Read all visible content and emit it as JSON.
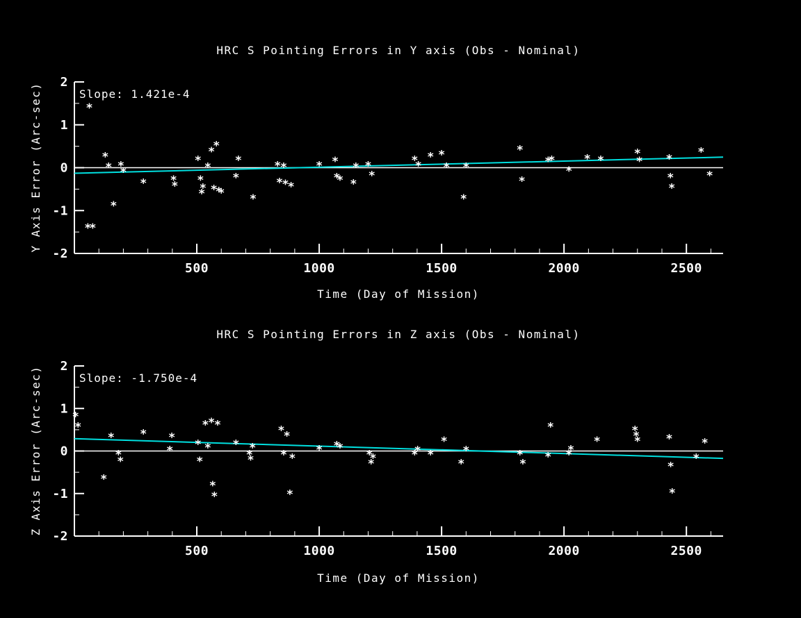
{
  "page": {
    "background": "#000000",
    "foreground": "#ffffff",
    "trend_color": "#00e0e0"
  },
  "chart_data": [
    {
      "type": "scatter",
      "title": "HRC S Pointing Errors in Y axis (Obs - Nominal)",
      "xlabel": "Time (Day of Mission)",
      "ylabel": "Y Axis Error (Arc-sec)",
      "annotation": "Slope: 1.421e-4",
      "marker": "*",
      "xlim": [
        0,
        2650
      ],
      "ylim": [
        -2,
        2
      ],
      "xticks": [
        500,
        1000,
        1500,
        2000,
        2500
      ],
      "yticks": [
        -2,
        -1,
        0,
        1,
        2
      ],
      "zero_line": true,
      "legend": "none",
      "grid": false,
      "trend": {
        "slope": 0.0001421,
        "intercept": -0.13
      },
      "points": [
        [
          61,
          1.4
        ],
        [
          55,
          -1.4
        ],
        [
          75,
          -1.4
        ],
        [
          126,
          0.26
        ],
        [
          140,
          0.02
        ],
        [
          160,
          -0.88
        ],
        [
          190,
          0.05
        ],
        [
          200,
          -0.1
        ],
        [
          282,
          -0.36
        ],
        [
          405,
          -0.28
        ],
        [
          410,
          -0.42
        ],
        [
          505,
          0.18
        ],
        [
          515,
          -0.28
        ],
        [
          520,
          -0.6
        ],
        [
          525,
          -0.47
        ],
        [
          545,
          0.02
        ],
        [
          560,
          0.38
        ],
        [
          570,
          -0.5
        ],
        [
          580,
          0.52
        ],
        [
          590,
          -0.55
        ],
        [
          600,
          -0.58
        ],
        [
          660,
          -0.23
        ],
        [
          670,
          0.18
        ],
        [
          730,
          -0.72
        ],
        [
          830,
          0.05
        ],
        [
          838,
          -0.34
        ],
        [
          855,
          0.02
        ],
        [
          862,
          -0.38
        ],
        [
          885,
          -0.44
        ],
        [
          1000,
          0.05
        ],
        [
          1065,
          0.15
        ],
        [
          1072,
          -0.23
        ],
        [
          1085,
          -0.28
        ],
        [
          1140,
          -0.37
        ],
        [
          1150,
          0.02
        ],
        [
          1200,
          0.05
        ],
        [
          1215,
          -0.18
        ],
        [
          1390,
          0.18
        ],
        [
          1405,
          0.05
        ],
        [
          1455,
          0.26
        ],
        [
          1500,
          0.31
        ],
        [
          1520,
          0.02
        ],
        [
          1590,
          -0.72
        ],
        [
          1600,
          0.02
        ],
        [
          1820,
          0.42
        ],
        [
          1828,
          -0.31
        ],
        [
          1935,
          0.15
        ],
        [
          1950,
          0.18
        ],
        [
          2020,
          -0.07
        ],
        [
          2095,
          0.21
        ],
        [
          2150,
          0.18
        ],
        [
          2300,
          0.34
        ],
        [
          2308,
          0.15
        ],
        [
          2430,
          0.21
        ],
        [
          2435,
          -0.23
        ],
        [
          2440,
          -0.47
        ],
        [
          2560,
          0.37
        ],
        [
          2595,
          -0.18
        ]
      ]
    },
    {
      "type": "scatter",
      "title": "HRC S Pointing Errors in  Z axis (Obs - Nominal)",
      "xlabel": "Time (Day of Mission)",
      "ylabel": "Z Axis Error (Arc-sec)",
      "annotation": "Slope: -1.750e-4",
      "marker": "*",
      "xlim": [
        0,
        2650
      ],
      "ylim": [
        -2,
        2
      ],
      "xticks": [
        500,
        1000,
        1500,
        2000,
        2500
      ],
      "yticks": [
        -2,
        -1,
        0,
        1,
        2
      ],
      "zero_line": true,
      "legend": "none",
      "grid": false,
      "trend": {
        "slope": -0.000175,
        "intercept": 0.29
      },
      "points": [
        [
          5,
          0.82
        ],
        [
          15,
          0.57
        ],
        [
          120,
          -0.65
        ],
        [
          150,
          0.33
        ],
        [
          180,
          -0.08
        ],
        [
          188,
          -0.24
        ],
        [
          282,
          0.41
        ],
        [
          390,
          0.02
        ],
        [
          398,
          0.33
        ],
        [
          505,
          0.16
        ],
        [
          512,
          -0.24
        ],
        [
          535,
          0.62
        ],
        [
          545,
          0.08
        ],
        [
          560,
          0.68
        ],
        [
          565,
          -0.81
        ],
        [
          572,
          -1.06
        ],
        [
          585,
          0.62
        ],
        [
          660,
          0.16
        ],
        [
          715,
          -0.08
        ],
        [
          720,
          -0.2
        ],
        [
          728,
          0.08
        ],
        [
          845,
          0.49
        ],
        [
          855,
          -0.08
        ],
        [
          868,
          0.36
        ],
        [
          880,
          -1.01
        ],
        [
          890,
          -0.16
        ],
        [
          1000,
          0.03
        ],
        [
          1072,
          0.13
        ],
        [
          1085,
          0.08
        ],
        [
          1205,
          -0.08
        ],
        [
          1212,
          -0.29
        ],
        [
          1220,
          -0.16
        ],
        [
          1390,
          -0.08
        ],
        [
          1402,
          0.02
        ],
        [
          1455,
          -0.08
        ],
        [
          1510,
          0.24
        ],
        [
          1580,
          -0.29
        ],
        [
          1600,
          0.02
        ],
        [
          1820,
          -0.08
        ],
        [
          1832,
          -0.29
        ],
        [
          1935,
          -0.13
        ],
        [
          1945,
          0.57
        ],
        [
          2020,
          -0.08
        ],
        [
          2028,
          0.03
        ],
        [
          2135,
          0.24
        ],
        [
          2290,
          0.49
        ],
        [
          2295,
          0.36
        ],
        [
          2300,
          0.24
        ],
        [
          2430,
          0.29
        ],
        [
          2436,
          -0.36
        ],
        [
          2442,
          -0.98
        ],
        [
          2540,
          -0.16
        ],
        [
          2575,
          0.2
        ]
      ]
    }
  ]
}
